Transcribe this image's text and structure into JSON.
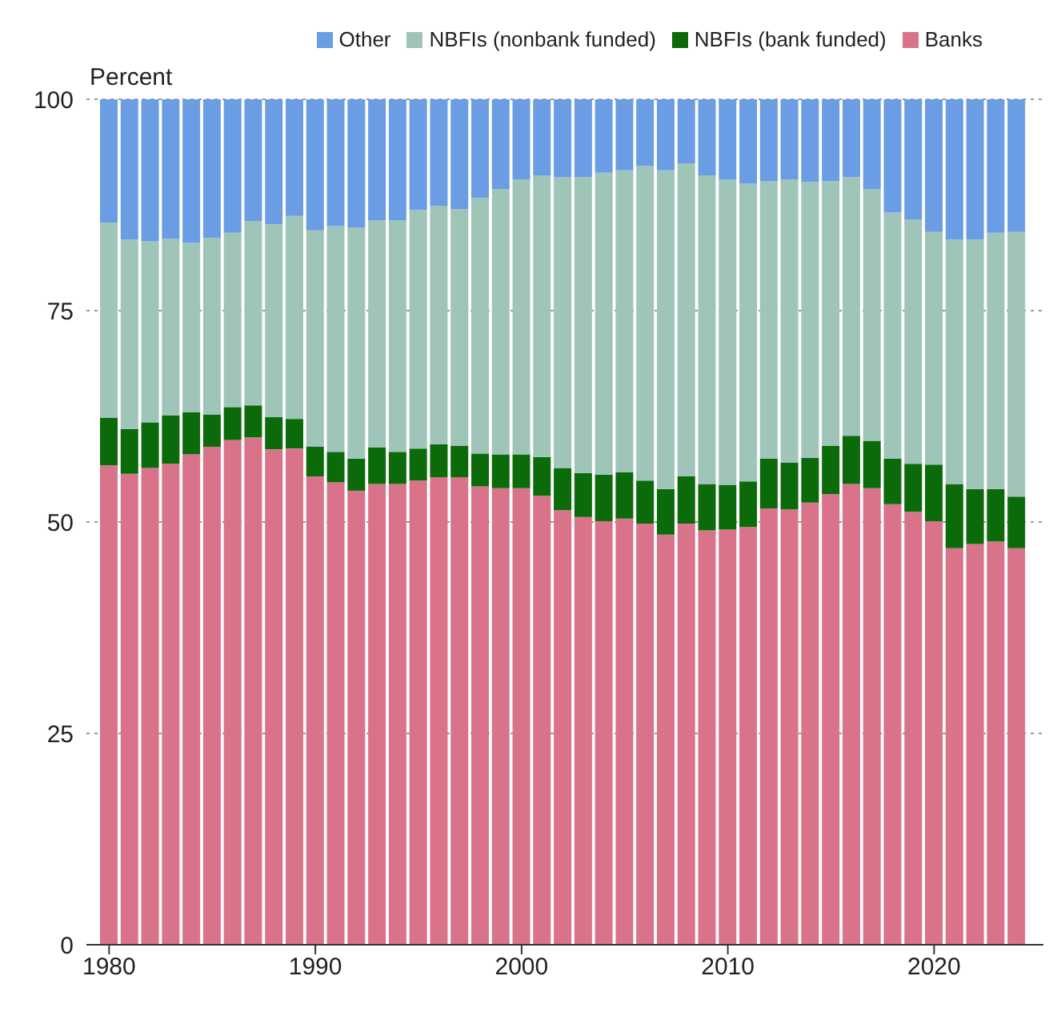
{
  "chart_data": {
    "type": "bar",
    "stacked": true,
    "ylabel": "Percent",
    "x": [
      1980,
      1981,
      1982,
      1983,
      1984,
      1985,
      1986,
      1987,
      1988,
      1989,
      1990,
      1991,
      1992,
      1993,
      1994,
      1995,
      1996,
      1997,
      1998,
      1999,
      2000,
      2001,
      2002,
      2003,
      2004,
      2005,
      2006,
      2007,
      2008,
      2009,
      2010,
      2011,
      2012,
      2013,
      2014,
      2015,
      2016,
      2017,
      2018,
      2019,
      2020,
      2021,
      2022,
      2023,
      2024
    ],
    "xlim": [
      1978.9,
      2025.3
    ],
    "xticks": [
      1980,
      1990,
      2000,
      2010,
      2020
    ],
    "ylim": [
      0,
      100
    ],
    "yticks": [
      0,
      25,
      50,
      75,
      100
    ],
    "grid": "y",
    "legend": "top right",
    "series": [
      {
        "name": "Banks",
        "color": "#d9738a",
        "values": [
          56.7,
          55.7,
          56.4,
          56.9,
          58.0,
          58.9,
          59.7,
          60.0,
          58.6,
          58.7,
          55.4,
          54.7,
          53.7,
          54.5,
          54.5,
          54.9,
          55.3,
          55.3,
          54.2,
          54.0,
          54.0,
          53.1,
          51.4,
          50.6,
          50.1,
          50.4,
          49.8,
          48.5,
          49.8,
          49.0,
          49.1,
          49.4,
          51.6,
          51.5,
          52.3,
          53.3,
          54.5,
          54.0,
          52.1,
          51.2,
          50.1,
          46.9,
          47.4,
          47.7,
          46.9
        ]
      },
      {
        "name": "NBFIs (bank funded)",
        "color": "#0b6b0b",
        "values": [
          5.6,
          5.3,
          5.4,
          5.7,
          5.0,
          3.8,
          3.9,
          3.8,
          3.8,
          3.5,
          3.5,
          3.6,
          3.8,
          4.3,
          3.8,
          3.8,
          3.9,
          3.7,
          3.9,
          4.0,
          4.0,
          4.6,
          5.0,
          5.2,
          5.5,
          5.5,
          5.1,
          5.4,
          5.6,
          5.5,
          5.3,
          5.4,
          5.9,
          5.5,
          5.3,
          5.7,
          5.7,
          5.6,
          5.4,
          5.7,
          6.7,
          7.6,
          6.5,
          6.2,
          6.1
        ]
      },
      {
        "name": "NBFIs (nonbank funded)",
        "color": "#9fc5b9",
        "values": [
          23.1,
          22.4,
          21.4,
          20.9,
          20.0,
          20.9,
          20.6,
          21.8,
          22.8,
          24.0,
          25.6,
          26.7,
          27.3,
          26.9,
          27.4,
          28.2,
          28.2,
          28.0,
          30.2,
          31.4,
          32.5,
          33.3,
          34.4,
          35.0,
          35.7,
          35.7,
          37.2,
          37.7,
          37.0,
          36.5,
          36.1,
          35.2,
          32.8,
          33.5,
          32.6,
          31.3,
          30.6,
          29.8,
          29.1,
          28.9,
          27.5,
          28.9,
          29.5,
          30.3,
          31.3
        ]
      },
      {
        "name": "Other",
        "color": "#6a9de3",
        "values": [
          14.6,
          16.6,
          16.8,
          16.5,
          17.0,
          16.4,
          15.8,
          14.4,
          14.8,
          13.8,
          15.5,
          15.0,
          15.2,
          14.3,
          14.3,
          13.1,
          12.6,
          13.0,
          11.7,
          10.6,
          9.5,
          9.0,
          9.2,
          9.2,
          8.7,
          8.4,
          7.9,
          8.4,
          7.6,
          9.0,
          9.5,
          10.0,
          9.7,
          9.5,
          9.8,
          9.7,
          9.2,
          10.6,
          13.4,
          14.2,
          15.7,
          16.6,
          16.6,
          15.8,
          15.7
        ]
      }
    ]
  }
}
